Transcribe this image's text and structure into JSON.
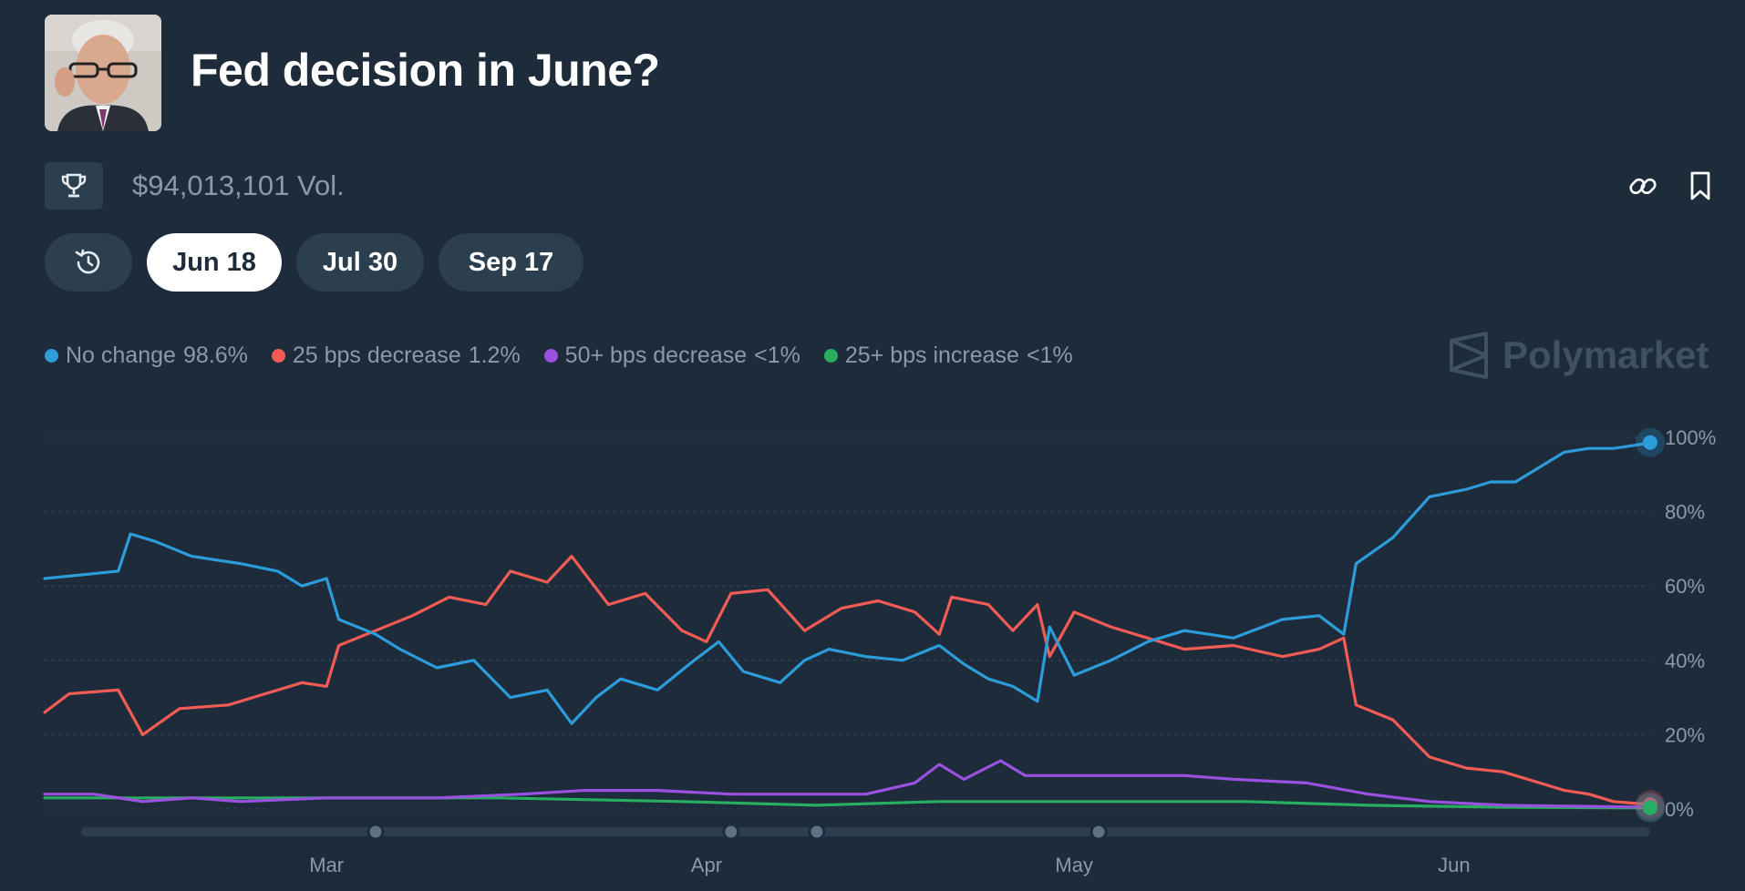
{
  "header": {
    "title": "Fed decision in June?",
    "volume": "$94,013,101 Vol."
  },
  "icons": {
    "trophy": "trophy-icon",
    "link": "link-icon",
    "bookmark": "bookmark-icon",
    "history": "history-icon",
    "watermark_logo": "polymarket-logo-icon"
  },
  "tabs": [
    {
      "label": "Jun 18",
      "active": true
    },
    {
      "label": "Jul 30",
      "active": false
    },
    {
      "label": "Sep 17",
      "active": false
    }
  ],
  "legend": [
    {
      "name": "No change",
      "value": "98.6%",
      "color": "#2d9cdb"
    },
    {
      "name": "25 bps decrease",
      "value": "1.2%",
      "color": "#f25c54"
    },
    {
      "name": "50+ bps decrease",
      "value": "<1%",
      "color": "#9b51e0"
    },
    {
      "name": "25+ bps increase",
      "value": "<1%",
      "color": "#27ae60"
    }
  ],
  "watermark": "Polymarket",
  "chart_data": {
    "type": "line",
    "x_start": "2025-02-06",
    "x_end": "2025-06-17",
    "ylim": [
      0,
      100
    ],
    "y_ticks": [
      "100%",
      "80%",
      "60%",
      "40%",
      "20%",
      "0%"
    ],
    "x_ticks": [
      {
        "label": "Mar",
        "date": "2025-03-01"
      },
      {
        "label": "Apr",
        "date": "2025-04-01"
      },
      {
        "label": "May",
        "date": "2025-05-01"
      },
      {
        "label": "Jun",
        "date": "2025-06-01"
      }
    ],
    "timeline_markers": [
      "2025-03-05",
      "2025-04-03",
      "2025-04-10",
      "2025-05-03"
    ],
    "grid": true,
    "series": [
      {
        "name": "No change",
        "color": "#2d9cdb",
        "points": [
          [
            "2025-02-06",
            62
          ],
          [
            "2025-02-09",
            63
          ],
          [
            "2025-02-12",
            64
          ],
          [
            "2025-02-13",
            74
          ],
          [
            "2025-02-15",
            72
          ],
          [
            "2025-02-18",
            68
          ],
          [
            "2025-02-22",
            66
          ],
          [
            "2025-02-25",
            64
          ],
          [
            "2025-02-27",
            60
          ],
          [
            "2025-03-01",
            62
          ],
          [
            "2025-03-02",
            51
          ],
          [
            "2025-03-05",
            47
          ],
          [
            "2025-03-07",
            43
          ],
          [
            "2025-03-10",
            38
          ],
          [
            "2025-03-13",
            40
          ],
          [
            "2025-03-16",
            30
          ],
          [
            "2025-03-19",
            32
          ],
          [
            "2025-03-21",
            23
          ],
          [
            "2025-03-23",
            30
          ],
          [
            "2025-03-25",
            35
          ],
          [
            "2025-03-28",
            32
          ],
          [
            "2025-03-31",
            40
          ],
          [
            "2025-04-02",
            45
          ],
          [
            "2025-04-04",
            37
          ],
          [
            "2025-04-07",
            34
          ],
          [
            "2025-04-09",
            40
          ],
          [
            "2025-04-11",
            43
          ],
          [
            "2025-04-14",
            41
          ],
          [
            "2025-04-17",
            40
          ],
          [
            "2025-04-20",
            44
          ],
          [
            "2025-04-22",
            39
          ],
          [
            "2025-04-24",
            35
          ],
          [
            "2025-04-26",
            33
          ],
          [
            "2025-04-28",
            29
          ],
          [
            "2025-04-29",
            49
          ],
          [
            "2025-05-01",
            36
          ],
          [
            "2025-05-04",
            40
          ],
          [
            "2025-05-07",
            45
          ],
          [
            "2025-05-10",
            48
          ],
          [
            "2025-05-14",
            46
          ],
          [
            "2025-05-18",
            51
          ],
          [
            "2025-05-21",
            52
          ],
          [
            "2025-05-23",
            47
          ],
          [
            "2025-05-24",
            66
          ],
          [
            "2025-05-27",
            73
          ],
          [
            "2025-05-30",
            84
          ],
          [
            "2025-06-02",
            86
          ],
          [
            "2025-06-04",
            88
          ],
          [
            "2025-06-06",
            88
          ],
          [
            "2025-06-08",
            92
          ],
          [
            "2025-06-10",
            96
          ],
          [
            "2025-06-12",
            97
          ],
          [
            "2025-06-14",
            97
          ],
          [
            "2025-06-16",
            98
          ],
          [
            "2025-06-17",
            98.6
          ]
        ]
      },
      {
        "name": "25 bps decrease",
        "color": "#f25c54",
        "points": [
          [
            "2025-02-06",
            26
          ],
          [
            "2025-02-08",
            31
          ],
          [
            "2025-02-12",
            32
          ],
          [
            "2025-02-14",
            20
          ],
          [
            "2025-02-17",
            27
          ],
          [
            "2025-02-21",
            28
          ],
          [
            "2025-02-24",
            31
          ],
          [
            "2025-02-27",
            34
          ],
          [
            "2025-03-01",
            33
          ],
          [
            "2025-03-02",
            44
          ],
          [
            "2025-03-05",
            48
          ],
          [
            "2025-03-08",
            52
          ],
          [
            "2025-03-11",
            57
          ],
          [
            "2025-03-14",
            55
          ],
          [
            "2025-03-16",
            64
          ],
          [
            "2025-03-19",
            61
          ],
          [
            "2025-03-21",
            68
          ],
          [
            "2025-03-24",
            55
          ],
          [
            "2025-03-27",
            58
          ],
          [
            "2025-03-30",
            48
          ],
          [
            "2025-04-01",
            45
          ],
          [
            "2025-04-03",
            58
          ],
          [
            "2025-04-06",
            59
          ],
          [
            "2025-04-09",
            48
          ],
          [
            "2025-04-12",
            54
          ],
          [
            "2025-04-15",
            56
          ],
          [
            "2025-04-18",
            53
          ],
          [
            "2025-04-20",
            47
          ],
          [
            "2025-04-21",
            57
          ],
          [
            "2025-04-24",
            55
          ],
          [
            "2025-04-26",
            48
          ],
          [
            "2025-04-28",
            55
          ],
          [
            "2025-04-29",
            41
          ],
          [
            "2025-05-01",
            53
          ],
          [
            "2025-05-04",
            49
          ],
          [
            "2025-05-07",
            46
          ],
          [
            "2025-05-10",
            43
          ],
          [
            "2025-05-14",
            44
          ],
          [
            "2025-05-18",
            41
          ],
          [
            "2025-05-21",
            43
          ],
          [
            "2025-05-23",
            46
          ],
          [
            "2025-05-24",
            28
          ],
          [
            "2025-05-27",
            24
          ],
          [
            "2025-05-30",
            14
          ],
          [
            "2025-06-02",
            11
          ],
          [
            "2025-06-05",
            10
          ],
          [
            "2025-06-08",
            7
          ],
          [
            "2025-06-10",
            5
          ],
          [
            "2025-06-12",
            4
          ],
          [
            "2025-06-14",
            2
          ],
          [
            "2025-06-17",
            1.2
          ]
        ]
      },
      {
        "name": "50+ bps decrease",
        "color": "#9b51e0",
        "points": [
          [
            "2025-02-06",
            4
          ],
          [
            "2025-02-10",
            4
          ],
          [
            "2025-02-14",
            2
          ],
          [
            "2025-02-18",
            3
          ],
          [
            "2025-02-22",
            2
          ],
          [
            "2025-03-01",
            3
          ],
          [
            "2025-03-10",
            3
          ],
          [
            "2025-03-17",
            4
          ],
          [
            "2025-03-22",
            5
          ],
          [
            "2025-03-28",
            5
          ],
          [
            "2025-04-03",
            4
          ],
          [
            "2025-04-10",
            4
          ],
          [
            "2025-04-14",
            4
          ],
          [
            "2025-04-18",
            7
          ],
          [
            "2025-04-20",
            12
          ],
          [
            "2025-04-22",
            8
          ],
          [
            "2025-04-25",
            13
          ],
          [
            "2025-04-27",
            9
          ],
          [
            "2025-05-04",
            9
          ],
          [
            "2025-05-10",
            9
          ],
          [
            "2025-05-14",
            8
          ],
          [
            "2025-05-20",
            7
          ],
          [
            "2025-05-25",
            4
          ],
          [
            "2025-05-30",
            2
          ],
          [
            "2025-06-05",
            1
          ],
          [
            "2025-06-17",
            0.5
          ]
        ]
      },
      {
        "name": "25+ bps increase",
        "color": "#27ae60",
        "points": [
          [
            "2025-02-06",
            3
          ],
          [
            "2025-02-15",
            3
          ],
          [
            "2025-02-22",
            3
          ],
          [
            "2025-03-01",
            3
          ],
          [
            "2025-03-15",
            3
          ],
          [
            "2025-03-30",
            2
          ],
          [
            "2025-04-10",
            1
          ],
          [
            "2025-04-20",
            2
          ],
          [
            "2025-04-25",
            2
          ],
          [
            "2025-05-05",
            2
          ],
          [
            "2025-05-15",
            2
          ],
          [
            "2025-05-25",
            1
          ],
          [
            "2025-06-05",
            0.5
          ],
          [
            "2025-06-17",
            0.3
          ]
        ]
      }
    ]
  }
}
